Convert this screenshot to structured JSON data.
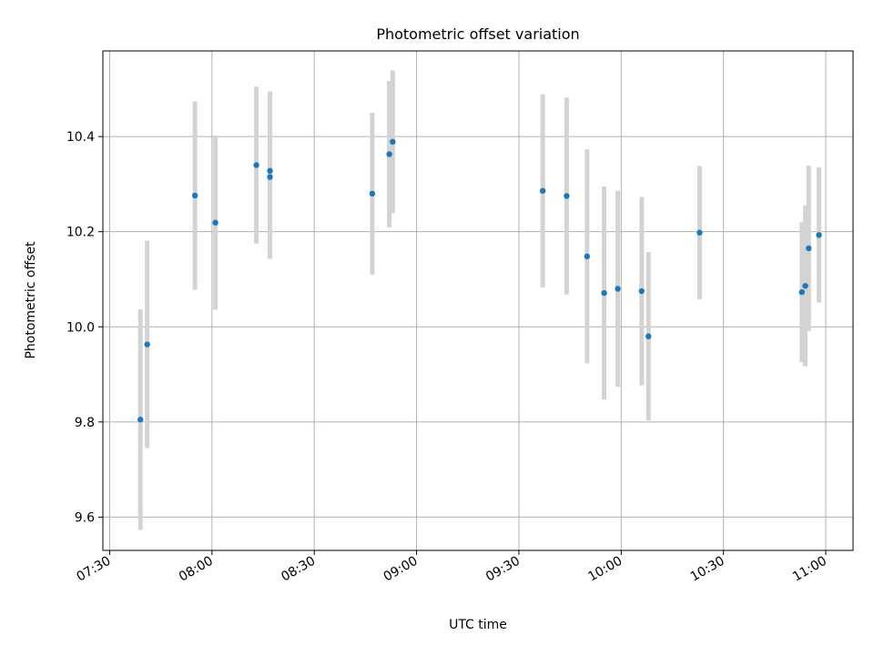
{
  "chart_data": {
    "type": "scatter",
    "title": "Photometric offset variation",
    "xlabel": "UTC time",
    "ylabel": "Photometric offset",
    "xlim": [
      "07:28",
      "11:08"
    ],
    "ylim": [
      9.53,
      10.58
    ],
    "x_ticks": [
      "07:30",
      "08:00",
      "08:30",
      "09:00",
      "09:30",
      "10:00",
      "10:30",
      "11:00"
    ],
    "y_ticks": [
      9.6,
      9.8,
      10.0,
      10.2,
      10.4
    ],
    "y_tick_labels": [
      "9.6",
      "9.8",
      "10.0",
      "10.2",
      "10.4"
    ],
    "grid": true,
    "colors": {
      "point": "#1f77b4",
      "errorbar": "#d3d3d3"
    },
    "series": [
      {
        "points": [
          {
            "time": "07:39",
            "y": 9.805,
            "err": 0.232
          },
          {
            "time": "07:41",
            "y": 9.963,
            "err": 0.218
          },
          {
            "time": "07:55",
            "y": 10.276,
            "err": 0.198
          },
          {
            "time": "08:01",
            "y": 10.219,
            "err": 0.183
          },
          {
            "time": "08:13",
            "y": 10.34,
            "err": 0.165
          },
          {
            "time": "08:17",
            "y": 10.315,
            "err": 0.172
          },
          {
            "time": "08:17",
            "y": 10.328,
            "err": 0.167
          },
          {
            "time": "08:47",
            "y": 10.28,
            "err": 0.17
          },
          {
            "time": "08:52",
            "y": 10.363,
            "err": 0.154
          },
          {
            "time": "08:53",
            "y": 10.389,
            "err": 0.15
          },
          {
            "time": "09:37",
            "y": 10.286,
            "err": 0.203
          },
          {
            "time": "09:44",
            "y": 10.275,
            "err": 0.207
          },
          {
            "time": "09:50",
            "y": 10.148,
            "err": 0.225
          },
          {
            "time": "09:55",
            "y": 10.071,
            "err": 0.224
          },
          {
            "time": "09:59",
            "y": 10.08,
            "err": 0.206
          },
          {
            "time": "10:06",
            "y": 10.075,
            "err": 0.198
          },
          {
            "time": "10:08",
            "y": 9.98,
            "err": 0.177
          },
          {
            "time": "10:23",
            "y": 10.198,
            "err": 0.14
          },
          {
            "time": "10:53",
            "y": 10.073,
            "err": 0.147
          },
          {
            "time": "10:54",
            "y": 10.086,
            "err": 0.169
          },
          {
            "time": "10:55",
            "y": 10.165,
            "err": 0.174
          },
          {
            "time": "10:58",
            "y": 10.193,
            "err": 0.142
          }
        ]
      }
    ]
  }
}
